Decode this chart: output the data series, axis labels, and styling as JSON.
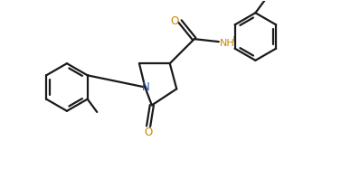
{
  "bg_color": "#ffffff",
  "bond_color": "#1a1a1a",
  "O_color": "#cc8800",
  "NH_color": "#cc8800",
  "N_color": "#2255aa",
  "line_width": 1.6,
  "fig_width": 3.77,
  "fig_height": 2.08,
  "dpi": 100,
  "xlim": [
    0,
    10
  ],
  "ylim": [
    0,
    5.5
  ]
}
